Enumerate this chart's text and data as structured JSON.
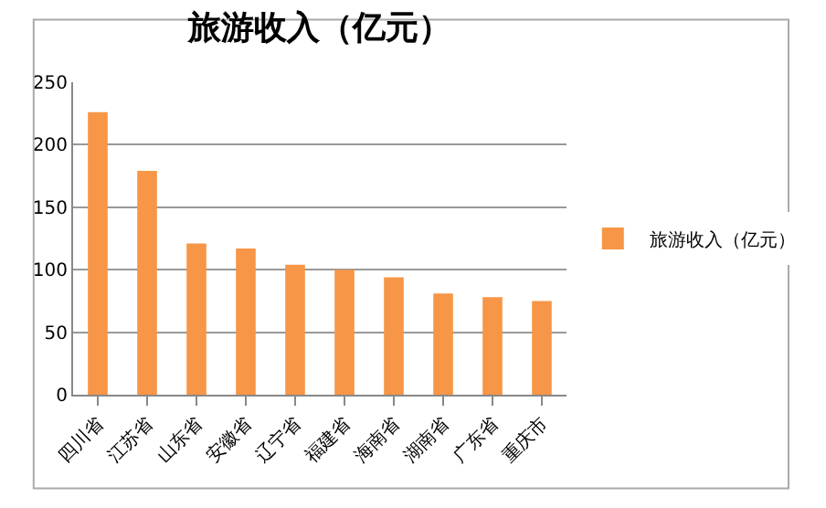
{
  "chart_data": {
    "type": "bar",
    "title": "旅游收入（亿元）",
    "categories": [
      "四川省",
      "江苏省",
      "山东省",
      "安徽省",
      "辽宁省",
      "福建省",
      "海南省",
      "湖南省",
      "广东省",
      "重庆市"
    ],
    "series": [
      {
        "name": "旅游收入（亿元）",
        "color": "#f79646",
        "values": [
          226,
          179,
          121,
          117,
          104,
          100,
          94,
          81,
          78,
          75
        ]
      }
    ],
    "ylim": [
      0,
      250
    ],
    "yticks": [
      0,
      50,
      100,
      150,
      200,
      250
    ],
    "grid": "y",
    "legend": "right"
  }
}
